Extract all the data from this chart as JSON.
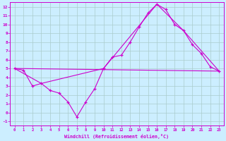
{
  "xlabel": "Windchill (Refroidissement éolien,°C)",
  "bg_color": "#cceeff",
  "grid_color": "#aacccc",
  "line_color": "#cc00cc",
  "xlim": [
    -0.5,
    23.5
  ],
  "ylim": [
    -1.5,
    12.5
  ],
  "xticks": [
    0,
    1,
    2,
    3,
    4,
    5,
    6,
    7,
    8,
    9,
    10,
    11,
    12,
    13,
    14,
    15,
    16,
    17,
    18,
    19,
    20,
    21,
    22,
    23
  ],
  "yticks": [
    -1,
    0,
    1,
    2,
    3,
    4,
    5,
    6,
    7,
    8,
    9,
    10,
    11,
    12
  ],
  "line1_x": [
    0,
    1,
    2,
    3,
    4,
    5,
    6,
    7,
    8,
    9,
    10,
    11,
    12,
    13,
    14,
    15,
    16,
    17,
    18,
    19,
    20,
    21,
    22,
    23
  ],
  "line1_y": [
    5.0,
    4.8,
    3.0,
    3.3,
    2.5,
    2.2,
    1.2,
    -0.5,
    1.2,
    2.7,
    5.0,
    6.3,
    6.5,
    8.0,
    9.7,
    11.3,
    12.3,
    11.7,
    10.0,
    9.3,
    7.7,
    6.7,
    5.2,
    4.7
  ],
  "line2_x": [
    0,
    3,
    10,
    16,
    19,
    23
  ],
  "line2_y": [
    5.0,
    3.3,
    5.0,
    12.3,
    9.3,
    4.7
  ],
  "line3_x": [
    0,
    23
  ],
  "line3_y": [
    5.0,
    4.7
  ]
}
